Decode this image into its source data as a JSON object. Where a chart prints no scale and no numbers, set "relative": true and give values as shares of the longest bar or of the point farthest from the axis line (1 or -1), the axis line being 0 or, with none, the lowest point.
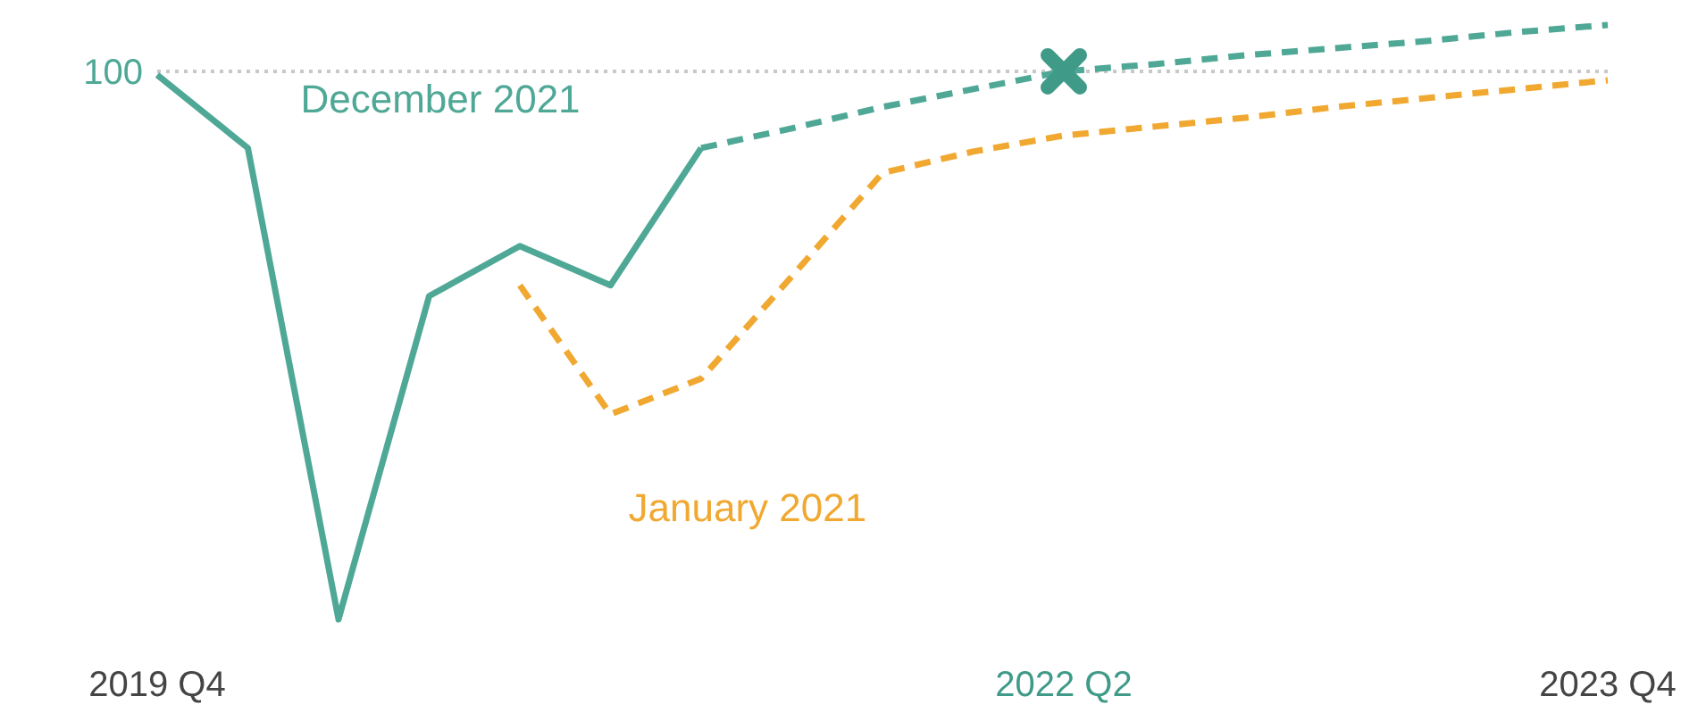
{
  "chart_data": {
    "type": "line",
    "relative": true,
    "annotations": [
      "100"
    ],
    "categories": [
      "2019 Q4",
      null,
      null,
      null,
      null,
      null,
      null,
      null,
      null,
      null,
      "2022 Q2",
      null,
      null,
      null,
      null,
      null,
      "2023 Q4"
    ],
    "series": [
      {
        "name": "December 2021",
        "color": "#4fa896",
        "line_style": "solid",
        "values": [
          0.916,
          0.793,
          0,
          0.544,
          0.628,
          0.562,
          0.793,
          null,
          null,
          null,
          null,
          null,
          null,
          null,
          null,
          null,
          null
        ]
      },
      {
        "color": "#4fa896",
        "line_style": "dashed",
        "values": [
          null,
          null,
          null,
          null,
          null,
          null,
          0.793,
          0.826,
          0.862,
          0.892,
          0.922,
          0.934,
          0.949,
          0.961,
          0.973,
          0.988,
          1
        ]
      },
      {
        "name": "January 2021",
        "color": "#f0a830",
        "line_style": "dashed",
        "values": [
          null,
          null,
          null,
          null,
          0.562,
          0.345,
          0.405,
          0.577,
          0.751,
          0.787,
          0.814,
          0.829,
          0.844,
          0.862,
          0.877,
          0.892,
          0.907
        ]
      },
      {
        "type": "scatter",
        "marker": "cross",
        "color": "#3f9a88",
        "values": [
          null,
          null,
          null,
          null,
          null,
          null,
          null,
          null,
          null,
          null,
          0.922,
          null,
          null,
          null,
          null,
          null,
          null
        ]
      }
    ],
    "ref_lines": [
      {
        "axis": "y",
        "value": 0.922,
        "color": "#c8c8c8",
        "line_style": "dotted"
      }
    ]
  }
}
